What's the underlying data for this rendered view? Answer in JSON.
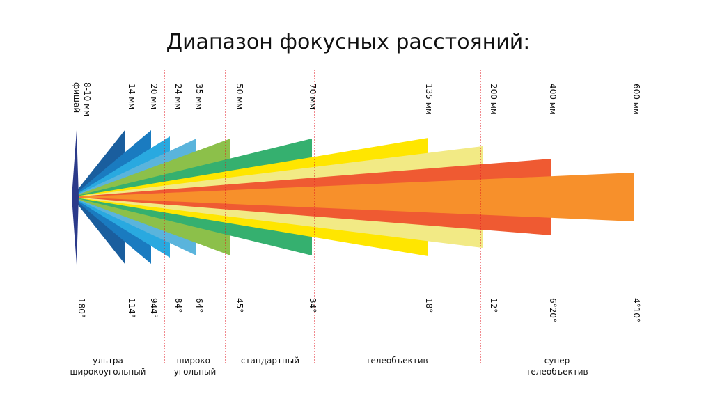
{
  "title": "Диапазон фокусных расстояний:",
  "lenses": [
    {
      "focal": "8-10 мм",
      "note": "фишай",
      "angle": "180°"
    },
    {
      "focal": "14 мм",
      "angle": "114°"
    },
    {
      "focal": "20 мм",
      "angle": "944°"
    },
    {
      "focal": "24 мм",
      "angle": "84°"
    },
    {
      "focal": "35 мм",
      "angle": "64°"
    },
    {
      "focal": "50 мм",
      "angle": "45°"
    },
    {
      "focal": "70 мм",
      "angle": "34°"
    },
    {
      "focal": "135 мм",
      "angle": "18°"
    },
    {
      "focal": "200 мм",
      "angle": "12°"
    },
    {
      "focal": "400 мм",
      "angle": "6°20°"
    },
    {
      "focal": "600 мм",
      "angle": "4°10°"
    }
  ],
  "categories": [
    {
      "lines": [
        "ультра",
        "широкоугольный"
      ]
    },
    {
      "lines": [
        "широко-",
        "угольный"
      ]
    },
    {
      "lines": [
        "стандартный"
      ]
    },
    {
      "lines": [
        "телеобъектив"
      ]
    },
    {
      "lines": [
        "супер",
        "телеобъектив"
      ]
    }
  ]
}
